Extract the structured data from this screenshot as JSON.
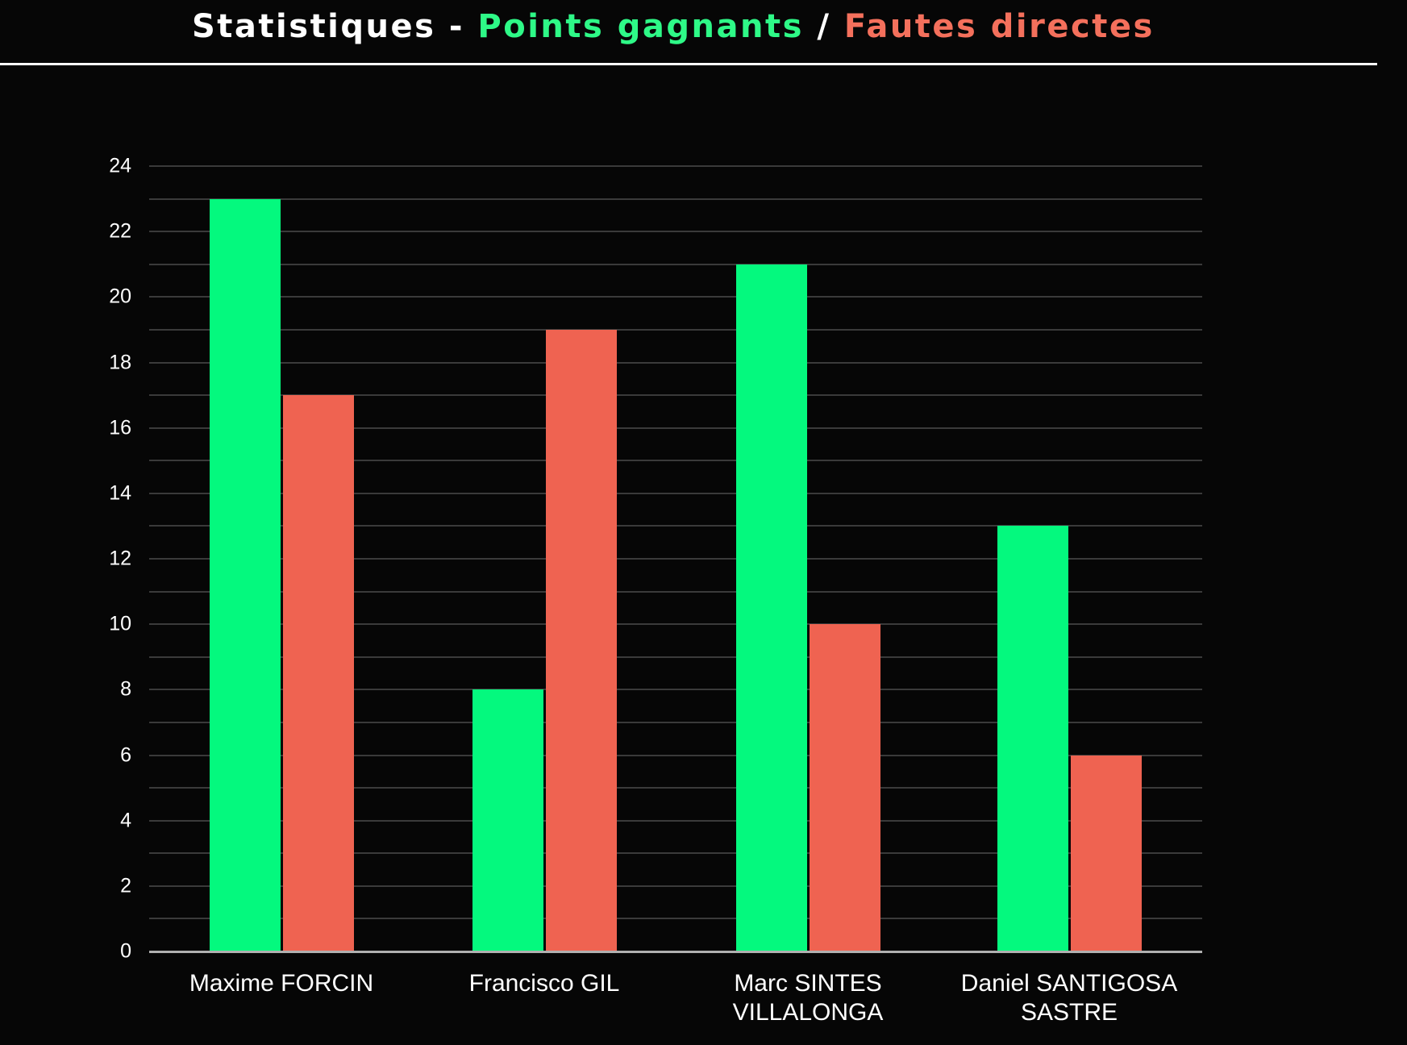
{
  "title": {
    "prefix": "Statistiques - ",
    "series1": "Points gagnants",
    "separator": " / ",
    "series2": "Fautes directes"
  },
  "colors": {
    "background": "#060606",
    "text": "#ffffff",
    "title_green": "#2ef987",
    "title_red": "#f4705c",
    "bar_green": "#04f97e",
    "bar_red": "#ef6351",
    "gridline": "#3a3a3a",
    "axis": "#b0b0b0"
  },
  "chart_data": {
    "type": "bar",
    "title": "Statistiques - Points gagnants / Fautes directes",
    "categories": [
      "Maxime FORCIN",
      "Francisco GIL",
      "Marc SINTES VILLALONGA",
      "Daniel SANTIGOSA SASTRE"
    ],
    "category_lines": [
      [
        "Maxime FORCIN"
      ],
      [
        "Francisco GIL"
      ],
      [
        "Marc SINTES",
        "VILLALONGA"
      ],
      [
        "Daniel SANTIGOSA",
        "SASTRE"
      ]
    ],
    "series": [
      {
        "name": "Points gagnants",
        "color_key": "bar_green",
        "values": [
          23,
          8,
          21,
          13
        ]
      },
      {
        "name": "Fautes directes",
        "color_key": "bar_red",
        "values": [
          17,
          19,
          10,
          6
        ]
      }
    ],
    "xlabel": "",
    "ylabel": "",
    "ylim": [
      0,
      24
    ],
    "y_tick_step": 2,
    "y_grid_step": 1,
    "grid": true,
    "legend_position": "in-title"
  }
}
